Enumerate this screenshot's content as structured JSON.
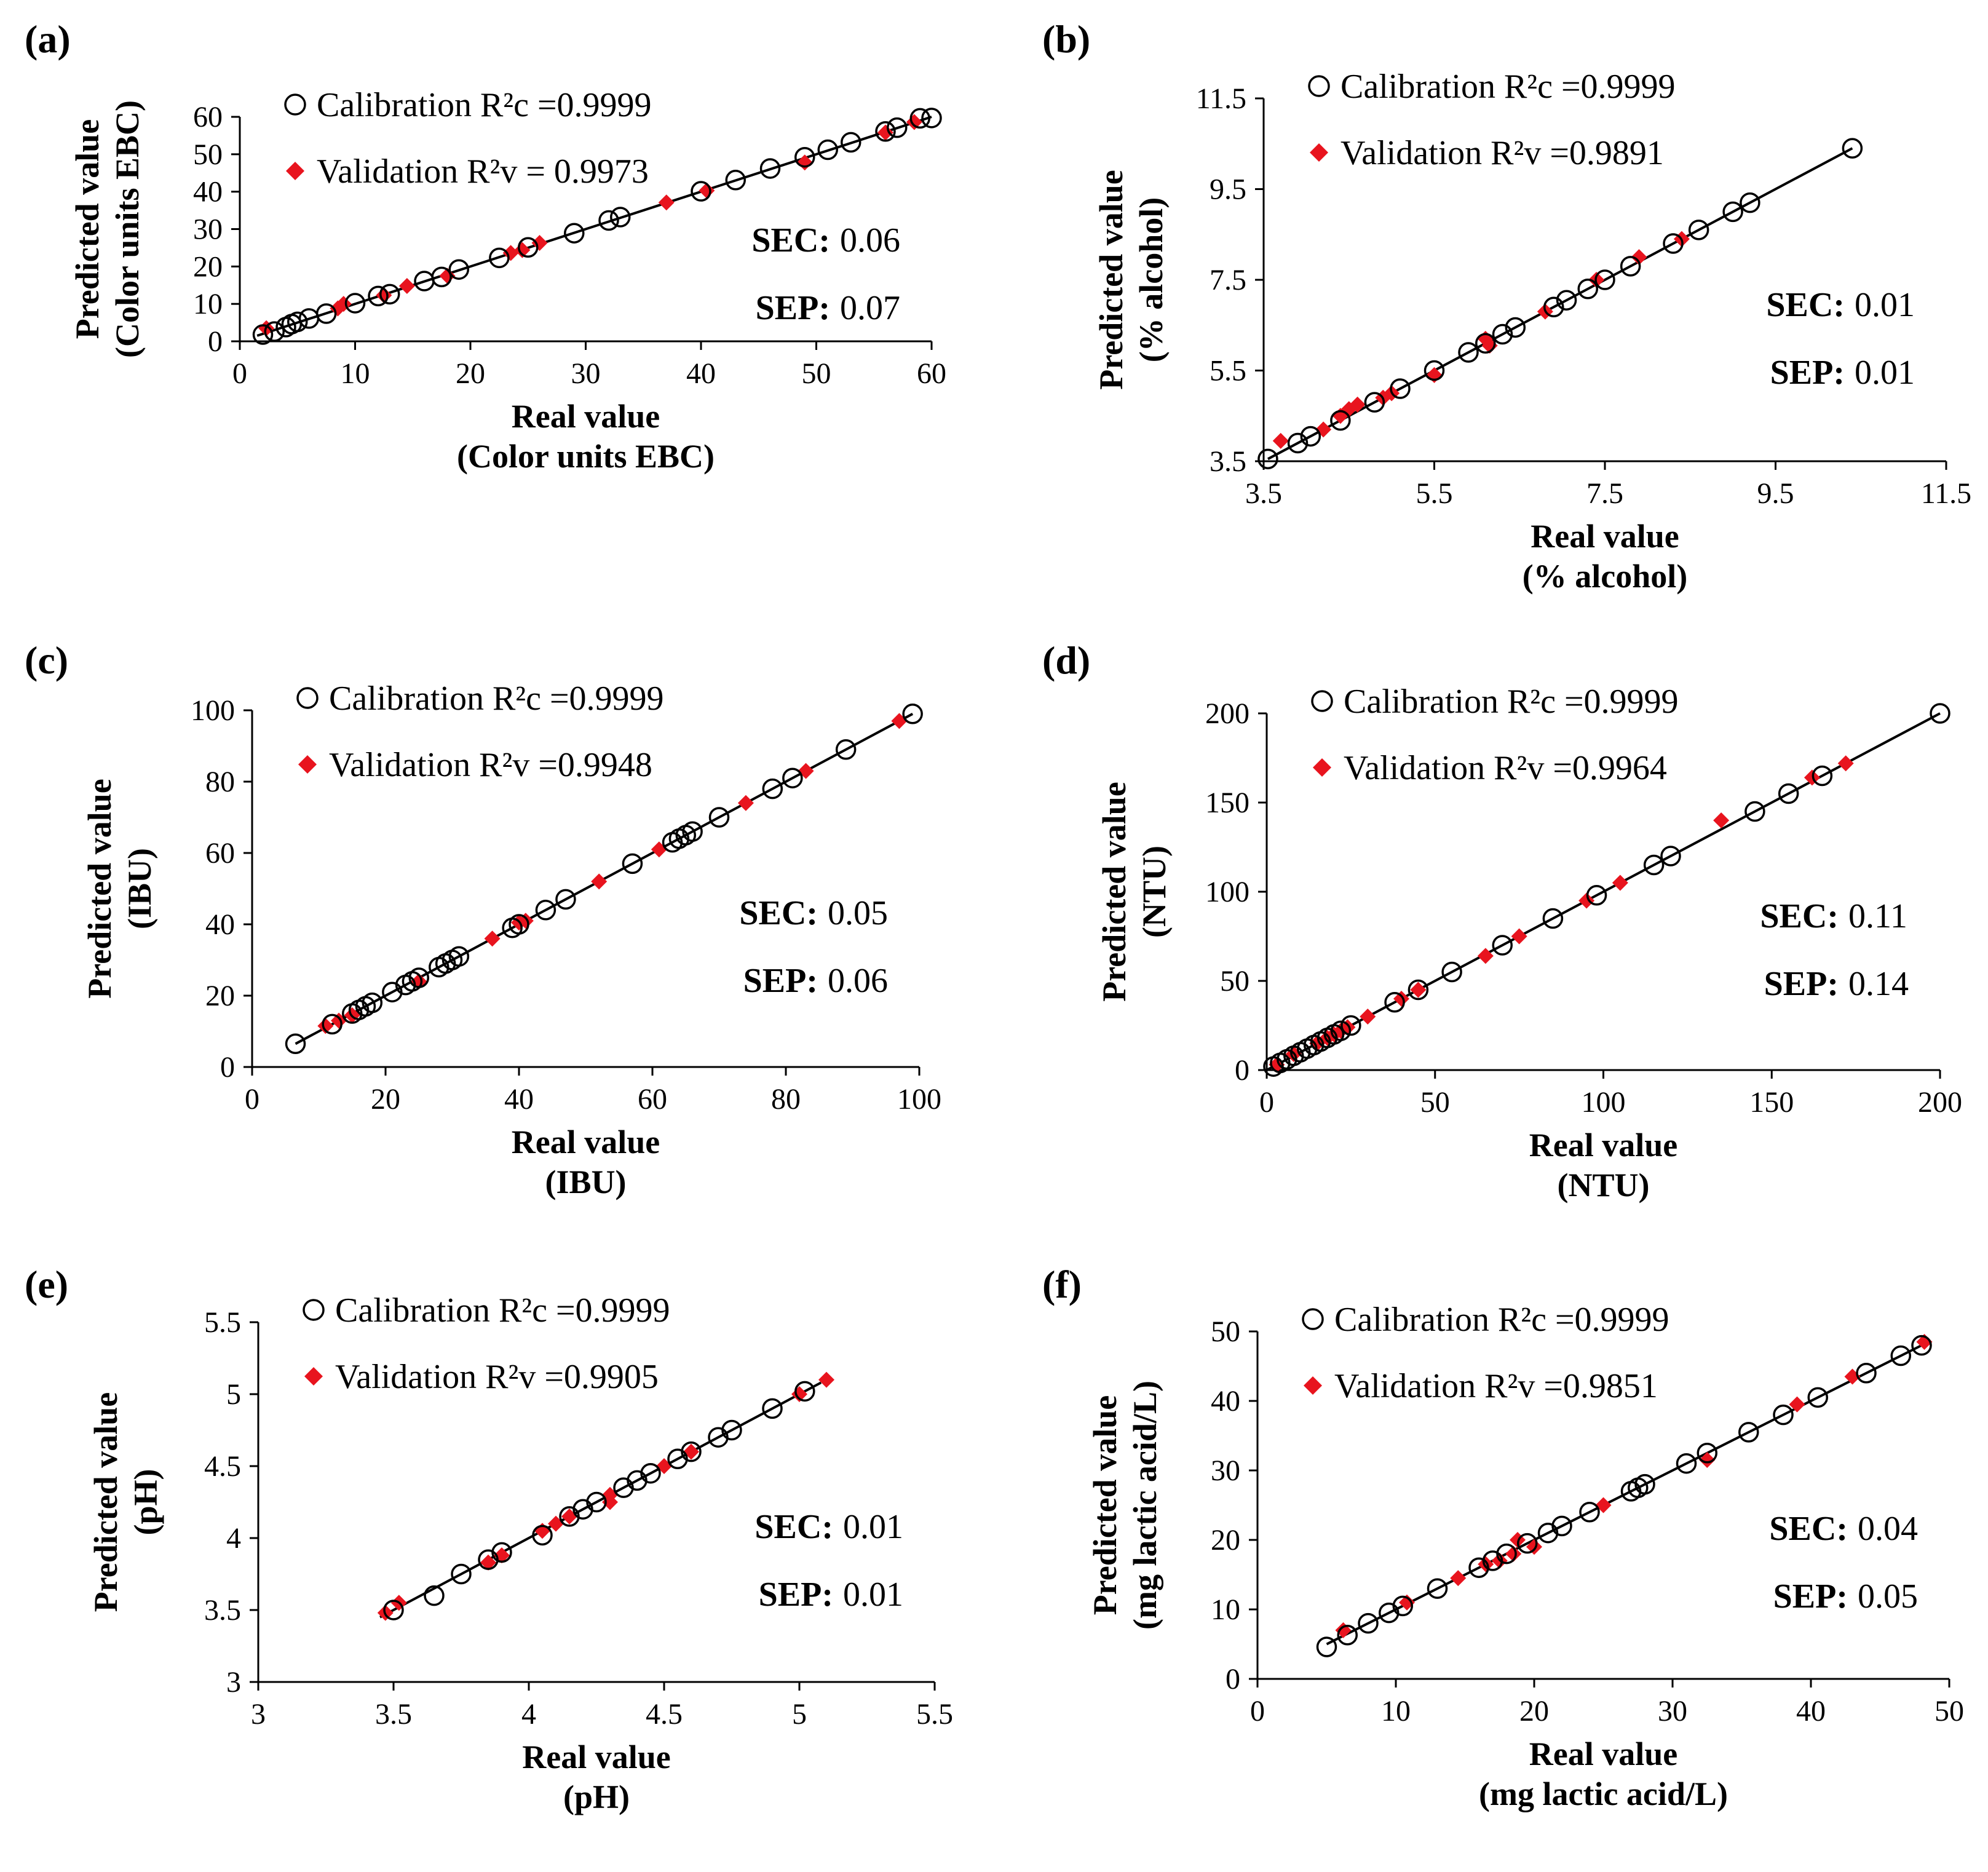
{
  "chart_data": [
    {
      "panel": "(a)",
      "type": "scatter",
      "xlabel": [
        "Real value",
        "(Color units EBC)"
      ],
      "ylabel": [
        "Predicted value",
        "(Color units EBC)"
      ],
      "xlim": [
        0,
        60
      ],
      "ylim": [
        0,
        60
      ],
      "xstep": 10,
      "ystep": 10,
      "tick_format": "int",
      "legend": [
        {
          "marker": "circle",
          "text": "Calibration R²c =0.9999"
        },
        {
          "marker": "diamond",
          "text": "Validation R²v = 0.9973"
        }
      ],
      "stats": [
        {
          "label": "SEC:",
          "value": "0.06"
        },
        {
          "label": "SEP:",
          "value": "0.07"
        }
      ],
      "fit_line": [
        [
          1.5,
          1.5
        ],
        [
          60,
          60
        ]
      ],
      "calibration": [
        [
          2,
          1.8
        ],
        [
          3,
          2.6
        ],
        [
          4,
          3.8
        ],
        [
          4.5,
          4.6
        ],
        [
          5,
          5.2
        ],
        [
          6,
          6.1
        ],
        [
          7.5,
          7.4
        ],
        [
          10,
          10.2
        ],
        [
          12,
          12.1
        ],
        [
          13,
          12.6
        ],
        [
          16,
          16.1
        ],
        [
          17.5,
          17.2
        ],
        [
          19,
          19.2
        ],
        [
          22.5,
          22.3
        ],
        [
          25,
          25.1
        ],
        [
          29,
          28.9
        ],
        [
          32,
          32.3
        ],
        [
          33,
          33.2
        ],
        [
          40,
          40.1
        ],
        [
          43,
          43.1
        ],
        [
          46,
          46.2
        ],
        [
          49,
          49.2
        ],
        [
          51,
          51.2
        ],
        [
          53,
          53.2
        ],
        [
          56,
          56.1
        ],
        [
          57,
          57.1
        ],
        [
          59,
          59.6
        ],
        [
          60,
          59.7
        ]
      ],
      "validation": [
        [
          2.3,
          3.5
        ],
        [
          8.5,
          8.8
        ],
        [
          9,
          10
        ],
        [
          12.5,
          12.3
        ],
        [
          14.5,
          14.8
        ],
        [
          18,
          17.5
        ],
        [
          23.5,
          23.6
        ],
        [
          24.5,
          24.4
        ],
        [
          26,
          26.3
        ],
        [
          37,
          37.1
        ],
        [
          40.5,
          40.3
        ],
        [
          49,
          47.8
        ],
        [
          56,
          55.8
        ],
        [
          58.5,
          58.6
        ]
      ]
    },
    {
      "panel": "(b)",
      "type": "scatter",
      "xlabel": [
        "Real value",
        "(% alcohol)"
      ],
      "ylabel": [
        "Predicted value",
        "(% alcohol)"
      ],
      "xlim": [
        3.5,
        11.5
      ],
      "ylim": [
        3.5,
        11.5
      ],
      "xstep": 2,
      "ystep": 2,
      "tick_format": "fixed1",
      "legend": [
        {
          "marker": "circle",
          "text": "Calibration R²c =0.9999"
        },
        {
          "marker": "diamond",
          "text": "Validation R²v =0.9891"
        }
      ],
      "stats": [
        {
          "label": "SEC:",
          "value": "0.01"
        },
        {
          "label": "SEP:",
          "value": "0.01"
        }
      ],
      "fit_line": [
        [
          3.55,
          3.55
        ],
        [
          10.4,
          10.4
        ]
      ],
      "calibration": [
        [
          3.55,
          3.55
        ],
        [
          3.9,
          3.9
        ],
        [
          4.05,
          4.05
        ],
        [
          4.4,
          4.4
        ],
        [
          4.8,
          4.8
        ],
        [
          5.1,
          5.1
        ],
        [
          5.5,
          5.5
        ],
        [
          5.9,
          5.9
        ],
        [
          6.1,
          6.1
        ],
        [
          6.3,
          6.3
        ],
        [
          6.45,
          6.45
        ],
        [
          6.9,
          6.9
        ],
        [
          7.05,
          7.05
        ],
        [
          7.3,
          7.3
        ],
        [
          7.5,
          7.5
        ],
        [
          7.8,
          7.8
        ],
        [
          8.3,
          8.3
        ],
        [
          8.6,
          8.6
        ],
        [
          9,
          9
        ],
        [
          9.2,
          9.2
        ],
        [
          10.4,
          10.4
        ]
      ],
      "validation": [
        [
          3.7,
          3.95
        ],
        [
          4.2,
          4.2
        ],
        [
          4.4,
          4.5
        ],
        [
          4.5,
          4.65
        ],
        [
          4.6,
          4.75
        ],
        [
          4.9,
          4.9
        ],
        [
          5.0,
          5.0
        ],
        [
          5.5,
          5.4
        ],
        [
          6.1,
          6.2
        ],
        [
          6.15,
          6.05
        ],
        [
          6.8,
          6.8
        ],
        [
          7.4,
          7.5
        ],
        [
          7.9,
          8.0
        ],
        [
          8.4,
          8.4
        ]
      ]
    },
    {
      "panel": "(c)",
      "type": "scatter",
      "xlabel": [
        "Real value",
        "(IBU)"
      ],
      "ylabel": [
        "Predicted value",
        "(IBU)"
      ],
      "xlim": [
        0,
        100
      ],
      "ylim": [
        0,
        100
      ],
      "xstep": 20,
      "ystep": 20,
      "tick_format": "int",
      "legend": [
        {
          "marker": "circle",
          "text": "Calibration R²c =0.9999"
        },
        {
          "marker": "diamond",
          "text": "Validation R²v =0.9948"
        }
      ],
      "stats": [
        {
          "label": "SEC:",
          "value": "0.05"
        },
        {
          "label": "SEP:",
          "value": "0.06"
        }
      ],
      "fit_line": [
        [
          6.5,
          6.5
        ],
        [
          99,
          99
        ]
      ],
      "calibration": [
        [
          6.5,
          6.5
        ],
        [
          12,
          12
        ],
        [
          15,
          15
        ],
        [
          16,
          16
        ],
        [
          17,
          17
        ],
        [
          18,
          18
        ],
        [
          21,
          21
        ],
        [
          23,
          23
        ],
        [
          24,
          24
        ],
        [
          25,
          25
        ],
        [
          28,
          28
        ],
        [
          29,
          29
        ],
        [
          30,
          30
        ],
        [
          31,
          31
        ],
        [
          39,
          39
        ],
        [
          40,
          40
        ],
        [
          44,
          44
        ],
        [
          47,
          47
        ],
        [
          57,
          57
        ],
        [
          63,
          63
        ],
        [
          64,
          64
        ],
        [
          65,
          65
        ],
        [
          66,
          66
        ],
        [
          70,
          70
        ],
        [
          78,
          78
        ],
        [
          81,
          81
        ],
        [
          89,
          89
        ],
        [
          99,
          99
        ]
      ],
      "validation": [
        [
          11,
          11.5
        ],
        [
          13,
          13
        ],
        [
          15,
          14.5
        ],
        [
          25,
          24
        ],
        [
          36,
          36
        ],
        [
          40,
          40.5
        ],
        [
          41,
          41
        ],
        [
          52,
          52
        ],
        [
          61,
          61
        ],
        [
          74,
          74
        ],
        [
          83,
          83
        ],
        [
          97,
          97
        ]
      ]
    },
    {
      "panel": "(d)",
      "type": "scatter",
      "xlabel": [
        "Real value",
        "(NTU)"
      ],
      "ylabel": [
        "Predicted value",
        "(NTU)"
      ],
      "xlim": [
        0,
        200
      ],
      "ylim": [
        0,
        200
      ],
      "xstep": 50,
      "ystep": 50,
      "tick_format": "int",
      "legend": [
        {
          "marker": "circle",
          "text": "Calibration R²c =0.9999"
        },
        {
          "marker": "diamond",
          "text": "Validation R²v =0.9964"
        }
      ],
      "stats": [
        {
          "label": "SEC:",
          "value": "0.11"
        },
        {
          "label": "SEP:",
          "value": "0.14"
        }
      ],
      "fit_line": [
        [
          0,
          0
        ],
        [
          200,
          200
        ]
      ],
      "calibration": [
        [
          2,
          2
        ],
        [
          4,
          4
        ],
        [
          6,
          6
        ],
        [
          8,
          8
        ],
        [
          10,
          10
        ],
        [
          12,
          12
        ],
        [
          14,
          14
        ],
        [
          16,
          16
        ],
        [
          18,
          18
        ],
        [
          20,
          20
        ],
        [
          22,
          22
        ],
        [
          25,
          25
        ],
        [
          38,
          38
        ],
        [
          45,
          45
        ],
        [
          55,
          55
        ],
        [
          70,
          70
        ],
        [
          85,
          85
        ],
        [
          98,
          98
        ],
        [
          115,
          115
        ],
        [
          120,
          120
        ],
        [
          145,
          145
        ],
        [
          155,
          155
        ],
        [
          165,
          165
        ],
        [
          200,
          200
        ]
      ],
      "validation": [
        [
          3,
          3
        ],
        [
          8,
          9
        ],
        [
          15,
          15
        ],
        [
          18,
          18
        ],
        [
          20,
          20
        ],
        [
          22,
          22
        ],
        [
          24,
          24
        ],
        [
          30,
          30
        ],
        [
          40,
          40
        ],
        [
          45,
          45
        ],
        [
          65,
          64
        ],
        [
          75,
          75
        ],
        [
          95,
          95
        ],
        [
          105,
          105
        ],
        [
          135,
          140
        ],
        [
          162,
          164
        ],
        [
          172,
          172
        ]
      ]
    },
    {
      "panel": "(e)",
      "type": "scatter",
      "xlabel": [
        "Real value",
        "(pH)"
      ],
      "ylabel": [
        "Predicted value",
        "(pH)"
      ],
      "xlim": [
        3,
        5.5
      ],
      "ylim": [
        3,
        5.5
      ],
      "xstep": 0.5,
      "ystep": 0.5,
      "tick_format": "auto",
      "legend": [
        {
          "marker": "circle",
          "text": "Calibration R²c =0.9999"
        },
        {
          "marker": "diamond",
          "text": "Validation R²v =0.9905"
        }
      ],
      "stats": [
        {
          "label": "SEC:",
          "value": "0.01"
        },
        {
          "label": "SEP:",
          "value": "0.01"
        }
      ],
      "fit_line": [
        [
          3.45,
          3.45
        ],
        [
          5.08,
          5.08
        ]
      ],
      "calibration": [
        [
          3.5,
          3.5
        ],
        [
          3.65,
          3.6
        ],
        [
          3.75,
          3.75
        ],
        [
          3.85,
          3.85
        ],
        [
          3.9,
          3.9
        ],
        [
          4.05,
          4.02
        ],
        [
          4.15,
          4.15
        ],
        [
          4.2,
          4.2
        ],
        [
          4.25,
          4.25
        ],
        [
          4.35,
          4.35
        ],
        [
          4.4,
          4.4
        ],
        [
          4.45,
          4.45
        ],
        [
          4.55,
          4.55
        ],
        [
          4.6,
          4.6
        ],
        [
          4.7,
          4.7
        ],
        [
          4.75,
          4.75
        ],
        [
          4.9,
          4.9
        ],
        [
          5.02,
          5.02
        ]
      ],
      "validation": [
        [
          3.47,
          3.48
        ],
        [
          3.52,
          3.55
        ],
        [
          3.85,
          3.83
        ],
        [
          3.9,
          3.88
        ],
        [
          4.05,
          4.05
        ],
        [
          4.1,
          4.1
        ],
        [
          4.15,
          4.15
        ],
        [
          4.3,
          4.3
        ],
        [
          4.3,
          4.25
        ],
        [
          4.5,
          4.5
        ],
        [
          4.6,
          4.6
        ],
        [
          5.0,
          5.0
        ],
        [
          5.1,
          5.1
        ]
      ]
    },
    {
      "panel": "(f)",
      "type": "scatter",
      "xlabel": [
        "Real value",
        "(mg lactic acid/L)"
      ],
      "ylabel": [
        "Predicted value",
        "(mg lactic acid/L)"
      ],
      "xlim": [
        0,
        50
      ],
      "ylim": [
        0,
        50
      ],
      "xstep": 10,
      "ystep": 10,
      "tick_format": "int",
      "legend": [
        {
          "marker": "circle",
          "text": "Calibration R²c =0.9999"
        },
        {
          "marker": "diamond",
          "text": "Validation R²v =0.9851"
        }
      ],
      "stats": [
        {
          "label": "SEC:",
          "value": "0.04"
        },
        {
          "label": "SEP:",
          "value": "0.05"
        }
      ],
      "fit_line": [
        [
          5,
          5
        ],
        [
          48,
          48
        ]
      ],
      "calibration": [
        [
          5,
          4.6
        ],
        [
          6.5,
          6.3
        ],
        [
          8,
          8
        ],
        [
          9.5,
          9.5
        ],
        [
          10.5,
          10.5
        ],
        [
          13,
          13
        ],
        [
          16,
          16
        ],
        [
          17,
          17
        ],
        [
          18,
          18
        ],
        [
          19.5,
          19.5
        ],
        [
          21,
          21
        ],
        [
          22,
          22
        ],
        [
          24,
          24
        ],
        [
          27,
          27
        ],
        [
          27.5,
          27.5
        ],
        [
          28,
          28
        ],
        [
          31,
          31
        ],
        [
          32.5,
          32.5
        ],
        [
          35.5,
          35.5
        ],
        [
          38,
          38
        ],
        [
          40.5,
          40.5
        ],
        [
          44,
          44
        ],
        [
          46.5,
          46.5
        ],
        [
          48,
          48
        ]
      ],
      "validation": [
        [
          6.2,
          7
        ],
        [
          10.8,
          11
        ],
        [
          14.5,
          14.5
        ],
        [
          16.5,
          16.5
        ],
        [
          17.5,
          17
        ],
        [
          18.5,
          18
        ],
        [
          18.8,
          20
        ],
        [
          20,
          19
        ],
        [
          25,
          25
        ],
        [
          32.5,
          31.5
        ],
        [
          39,
          39.5
        ],
        [
          43,
          43.5
        ],
        [
          48.2,
          48.5
        ]
      ]
    }
  ]
}
